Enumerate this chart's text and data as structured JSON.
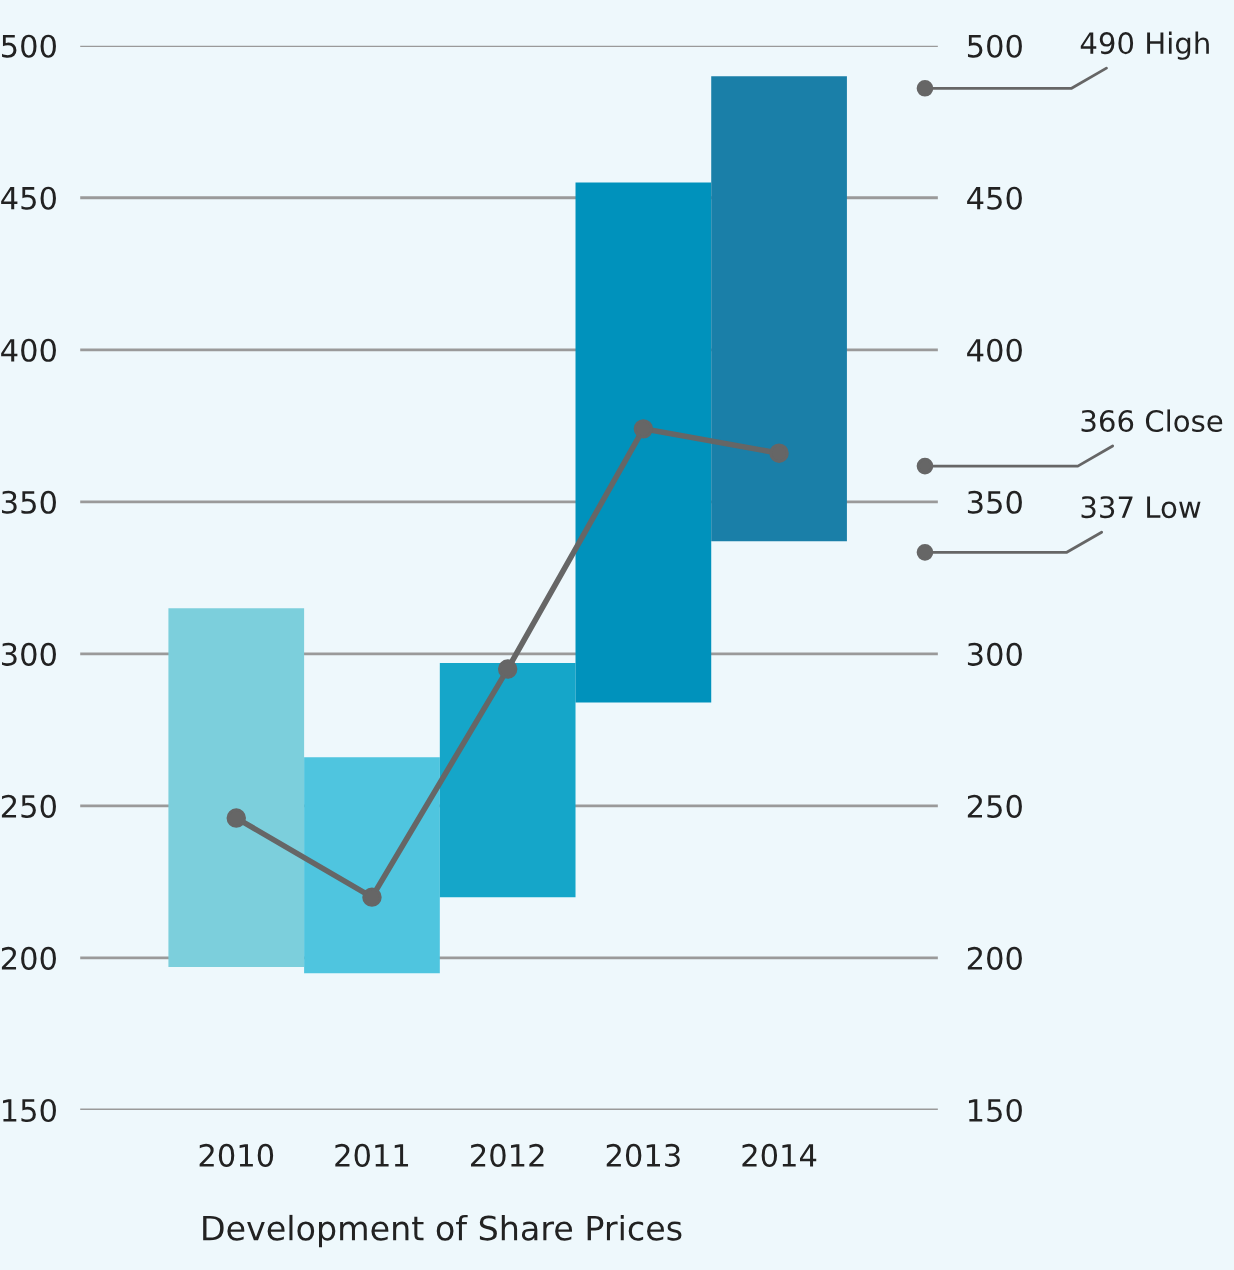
{
  "chart_data": {
    "type": "bar",
    "title": "Development of Share Prices",
    "categories": [
      "2010",
      "2011",
      "2012",
      "2013",
      "2014"
    ],
    "series": [
      {
        "base": [
          197,
          195,
          220,
          284,
          337
        ],
        "values": [
          118,
          71,
          77,
          171,
          153
        ],
        "colors": [
          "#7ccfdc",
          "#4fc5df",
          "#15a6c9",
          "#0092bc",
          "#1a7fa8"
        ]
      },
      {
        "type": "line",
        "color": "#666666",
        "values": [
          246,
          220,
          295,
          374,
          366
        ],
        "marker": "circle",
        "line_style": "solid"
      }
    ],
    "ylim": [
      150,
      500
    ],
    "yticks": [
      150,
      200,
      250,
      300,
      350,
      400,
      450,
      500
    ],
    "y2lim": [
      150,
      500
    ],
    "y2ticks": [
      150,
      200,
      250,
      300,
      350,
      400,
      450,
      500
    ],
    "grid": "y",
    "legend": false,
    "annotations": [
      "490 High",
      "366 Close",
      "337 Low"
    ]
  }
}
